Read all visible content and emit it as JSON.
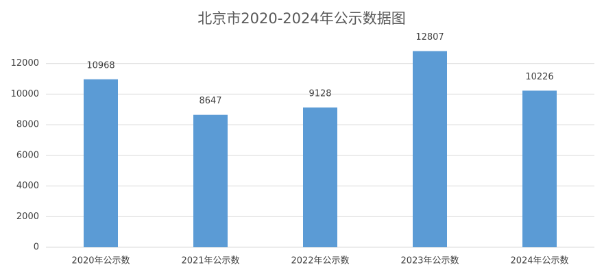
{
  "chart_data": {
    "type": "bar",
    "title": "北京市2020-2024年公示数据图",
    "categories": [
      "2020年公示数",
      "2021年公示数",
      "2022年公示数",
      "2023年公示数",
      "2024年公示数"
    ],
    "values": [
      10968,
      8647,
      9128,
      12807,
      10226
    ],
    "color": "#5b9bd5",
    "ylim": [
      0,
      14000
    ],
    "yticks": [
      0,
      2000,
      4000,
      6000,
      8000,
      10000,
      12000
    ],
    "grid": true
  }
}
